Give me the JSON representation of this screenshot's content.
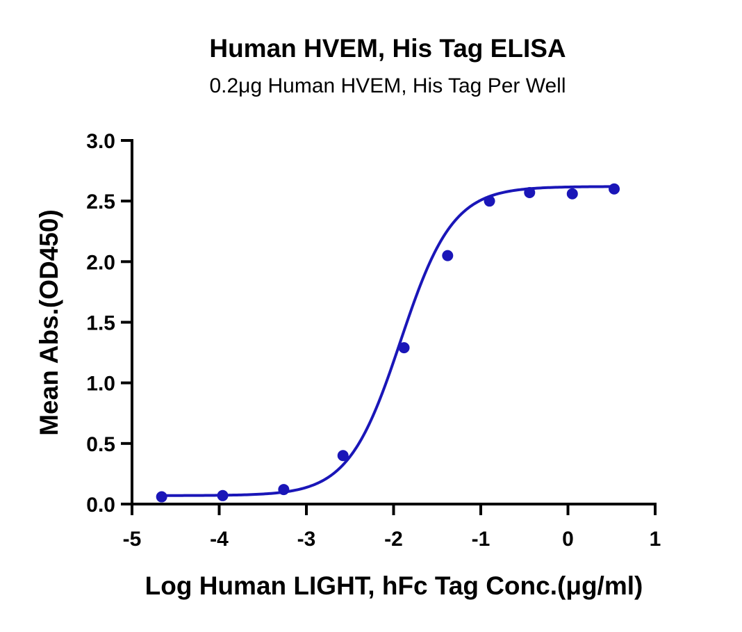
{
  "chart_data": {
    "type": "scatter",
    "title": "Human HVEM, His Tag ELISA",
    "subtitle": "0.2μg Human HVEM, His Tag Per Well",
    "xlabel": "Log Human LIGHT, hFc Tag Conc.(μg/ml)",
    "ylabel": "Mean Abs.(OD450)",
    "xlim": [
      -5,
      1
    ],
    "ylim": [
      0,
      3.0
    ],
    "xticks": [
      "-5",
      "-4",
      "-3",
      "-2",
      "-1",
      "0",
      "1"
    ],
    "yticks": [
      "0.0",
      "0.5",
      "1.0",
      "1.5",
      "2.0",
      "2.5",
      "3.0"
    ],
    "grid": false,
    "legend": "none",
    "series": [
      {
        "color": "#1a16b8",
        "x": [
          -4.66,
          -3.96,
          -3.26,
          -2.58,
          -1.88,
          -1.38,
          -0.9,
          -0.44,
          0.05,
          0.53
        ],
        "y": [
          0.06,
          0.07,
          0.12,
          0.4,
          1.29,
          2.05,
          2.5,
          2.57,
          2.56,
          2.6
        ]
      }
    ],
    "fit_curve": {
      "type": "4PL",
      "bottom": 0.07,
      "top": 2.62,
      "logEC50": -1.92,
      "hill": 1.45,
      "x_range": [
        -4.66,
        0.53
      ],
      "color": "#1a16b8"
    }
  }
}
